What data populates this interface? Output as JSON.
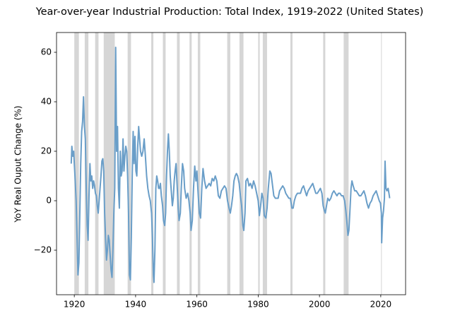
{
  "chart_data": {
    "type": "line",
    "title": "Year-over-year Industrial Production: Total Index, 1919-2022 (United States)",
    "ylabel": "YoY Real Ouput Change (%)",
    "color": "#6a9ec8",
    "recession_color": "#d6d6d6",
    "recessions": [
      [
        1920.0,
        1921.5
      ],
      [
        1923.4,
        1924.6
      ],
      [
        1926.8,
        1927.9
      ],
      [
        1929.6,
        1933.2
      ],
      [
        1937.4,
        1938.5
      ],
      [
        1945.1,
        1945.8
      ],
      [
        1948.9,
        1949.8
      ],
      [
        1953.5,
        1954.4
      ],
      [
        1957.6,
        1958.3
      ],
      [
        1960.3,
        1961.1
      ],
      [
        1969.9,
        1970.9
      ],
      [
        1973.9,
        1975.2
      ],
      [
        1980.0,
        1980.5
      ],
      [
        1981.5,
        1982.9
      ],
      [
        1990.5,
        1991.2
      ],
      [
        2001.2,
        2001.9
      ],
      [
        2007.9,
        2009.5
      ],
      [
        2020.1,
        2020.3
      ]
    ],
    "x": [
      1919.0,
      1919.2,
      1919.5,
      1919.8,
      1920.0,
      1920.3,
      1920.6,
      1920.9,
      1921.2,
      1921.5,
      1921.8,
      1922.1,
      1922.4,
      1922.7,
      1923.0,
      1923.3,
      1923.6,
      1923.9,
      1924.2,
      1924.5,
      1924.8,
      1925.1,
      1925.4,
      1925.7,
      1926.0,
      1926.3,
      1926.6,
      1926.9,
      1927.2,
      1927.5,
      1927.8,
      1928.1,
      1928.4,
      1928.7,
      1929.0,
      1929.3,
      1929.6,
      1929.9,
      1930.2,
      1930.5,
      1930.8,
      1931.1,
      1931.4,
      1931.7,
      1932.0,
      1932.3,
      1932.6,
      1932.9,
      1933.2,
      1933.5,
      1933.8,
      1934.1,
      1934.4,
      1934.7,
      1935.0,
      1935.3,
      1935.6,
      1935.9,
      1936.2,
      1936.5,
      1936.8,
      1937.1,
      1937.4,
      1937.7,
      1938.0,
      1938.3,
      1938.6,
      1938.9,
      1939.2,
      1939.5,
      1939.8,
      1940.1,
      1940.4,
      1940.7,
      1941.0,
      1941.3,
      1941.6,
      1942.0,
      1942.4,
      1942.8,
      1943.2,
      1943.6,
      1944.0,
      1944.4,
      1944.8,
      1945.2,
      1945.5,
      1945.8,
      1946.0,
      1946.3,
      1946.6,
      1946.9,
      1947.2,
      1947.5,
      1947.8,
      1948.1,
      1948.4,
      1948.8,
      1949.1,
      1949.5,
      1949.8,
      1950.1,
      1950.4,
      1950.7,
      1951.0,
      1951.3,
      1951.7,
      1952.0,
      1952.3,
      1952.6,
      1952.9,
      1953.2,
      1953.6,
      1953.9,
      1954.2,
      1954.6,
      1954.9,
      1955.3,
      1955.7,
      1956.0,
      1956.5,
      1957.0,
      1957.4,
      1957.8,
      1958.1,
      1958.5,
      1958.9,
      1959.3,
      1959.7,
      1960.0,
      1960.4,
      1960.8,
      1961.2,
      1961.6,
      1962.0,
      1962.5,
      1963.0,
      1963.5,
      1964.0,
      1964.5,
      1965.0,
      1965.5,
      1966.0,
      1966.5,
      1967.0,
      1967.5,
      1968.0,
      1968.5,
      1969.0,
      1969.5,
      1970.0,
      1970.5,
      1970.9,
      1971.3,
      1971.7,
      1972.1,
      1972.5,
      1972.9,
      1973.3,
      1973.8,
      1974.2,
      1974.6,
      1975.0,
      1975.3,
      1975.7,
      1976.0,
      1976.5,
      1977.0,
      1977.5,
      1978.0,
      1978.5,
      1979.0,
      1979.5,
      1980.0,
      1980.4,
      1980.8,
      1981.2,
      1981.6,
      1982.0,
      1982.5,
      1982.9,
      1983.3,
      1983.8,
      1984.2,
      1984.7,
      1985.1,
      1985.6,
      1986.0,
      1986.5,
      1987.0,
      1987.5,
      1988.0,
      1988.5,
      1989.0,
      1989.5,
      1990.0,
      1990.5,
      1991.0,
      1991.4,
      1991.8,
      1992.3,
      1992.8,
      1993.3,
      1993.8,
      1994.3,
      1994.8,
      1995.3,
      1995.8,
      1996.3,
      1996.8,
      1997.3,
      1997.8,
      1998.3,
      1998.8,
      1999.3,
      1999.8,
      2000.3,
      2000.8,
      2001.2,
      2001.6,
      2001.9,
      2002.3,
      2002.7,
      2003.2,
      2003.7,
      2004.2,
      2004.7,
      2005.2,
      2005.7,
      2006.2,
      2006.7,
      2007.2,
      2007.7,
      2008.2,
      2008.6,
      2008.9,
      2009.3,
      2009.6,
      2009.9,
      2010.3,
      2010.6,
      2011.0,
      2011.5,
      2012.0,
      2012.5,
      2013.0,
      2013.5,
      2014.0,
      2014.5,
      2015.0,
      2015.5,
      2016.0,
      2016.5,
      2017.0,
      2017.5,
      2018.0,
      2018.5,
      2019.0,
      2019.5,
      2019.9,
      2020.2,
      2020.3,
      2020.6,
      2020.9,
      2021.2,
      2021.4,
      2021.7,
      2022.0,
      2022.4,
      2022.8,
      2022.9
    ],
    "values": [
      15,
      22,
      18,
      20,
      15,
      8,
      0,
      -15,
      -30,
      -25,
      -5,
      15,
      28,
      32,
      42,
      30,
      25,
      5,
      -10,
      -16,
      2,
      15,
      8,
      10,
      5,
      8,
      6,
      3,
      2,
      -2,
      -5,
      0,
      5,
      10,
      16,
      17,
      12,
      -5,
      -15,
      -24,
      -20,
      -14,
      -16,
      -22,
      -28,
      -31,
      -20,
      -5,
      5,
      62,
      20,
      30,
      5,
      -3,
      20,
      10,
      12,
      25,
      12,
      18,
      22,
      20,
      10,
      -5,
      -30,
      -32,
      -15,
      10,
      28,
      15,
      26,
      12,
      10,
      22,
      30,
      25,
      20,
      18,
      20,
      25,
      18,
      10,
      5,
      2,
      0,
      -5,
      -15,
      -30,
      -33,
      -20,
      5,
      10,
      8,
      5,
      5,
      7,
      2,
      -2,
      -8,
      -10,
      -5,
      10,
      20,
      27,
      20,
      10,
      3,
      -2,
      1,
      8,
      12,
      15,
      5,
      -3,
      -8,
      -5,
      5,
      15,
      12,
      5,
      1,
      3,
      0,
      -5,
      -12,
      -8,
      5,
      14,
      8,
      12,
      3,
      -5,
      -7,
      5,
      13,
      8,
      5,
      6,
      7,
      6,
      9,
      8,
      10,
      8,
      2,
      1,
      4,
      5,
      6,
      5,
      0,
      -3,
      -5,
      -2,
      2,
      8,
      10,
      11,
      10,
      7,
      2,
      -2,
      -10,
      -12,
      -5,
      8,
      9,
      6,
      7,
      5,
      8,
      6,
      3,
      0,
      -6,
      -2,
      3,
      1,
      -6,
      -7,
      -3,
      5,
      12,
      11,
      6,
      2,
      1,
      1,
      1,
      4,
      5,
      6,
      5,
      3,
      2,
      1,
      1,
      -3,
      -3,
      0,
      2,
      3,
      3,
      3,
      5,
      6,
      4,
      2,
      4,
      5,
      6,
      7,
      5,
      3,
      3,
      4,
      5,
      3,
      -2,
      -4,
      -5,
      -2,
      1,
      0,
      1,
      3,
      4,
      3,
      2,
      3,
      3,
      2,
      2,
      0,
      -4,
      -8,
      -14,
      -12,
      -5,
      5,
      8,
      6,
      4,
      4,
      3,
      2,
      2,
      3,
      4,
      2,
      -1,
      -3,
      -1,
      0,
      2,
      3,
      4,
      2,
      0,
      -1,
      -5,
      -17,
      -7,
      -4,
      1,
      16,
      5,
      4,
      5,
      2,
      1
    ],
    "xlim": [
      1914.2,
      2028.1
    ],
    "ylim": [
      -38,
      68
    ],
    "xticks": [
      1920,
      1940,
      1960,
      1980,
      2000,
      2020
    ],
    "yticks": [
      {
        "value": -20,
        "label": "−20"
      },
      0,
      20,
      40,
      60
    ]
  }
}
